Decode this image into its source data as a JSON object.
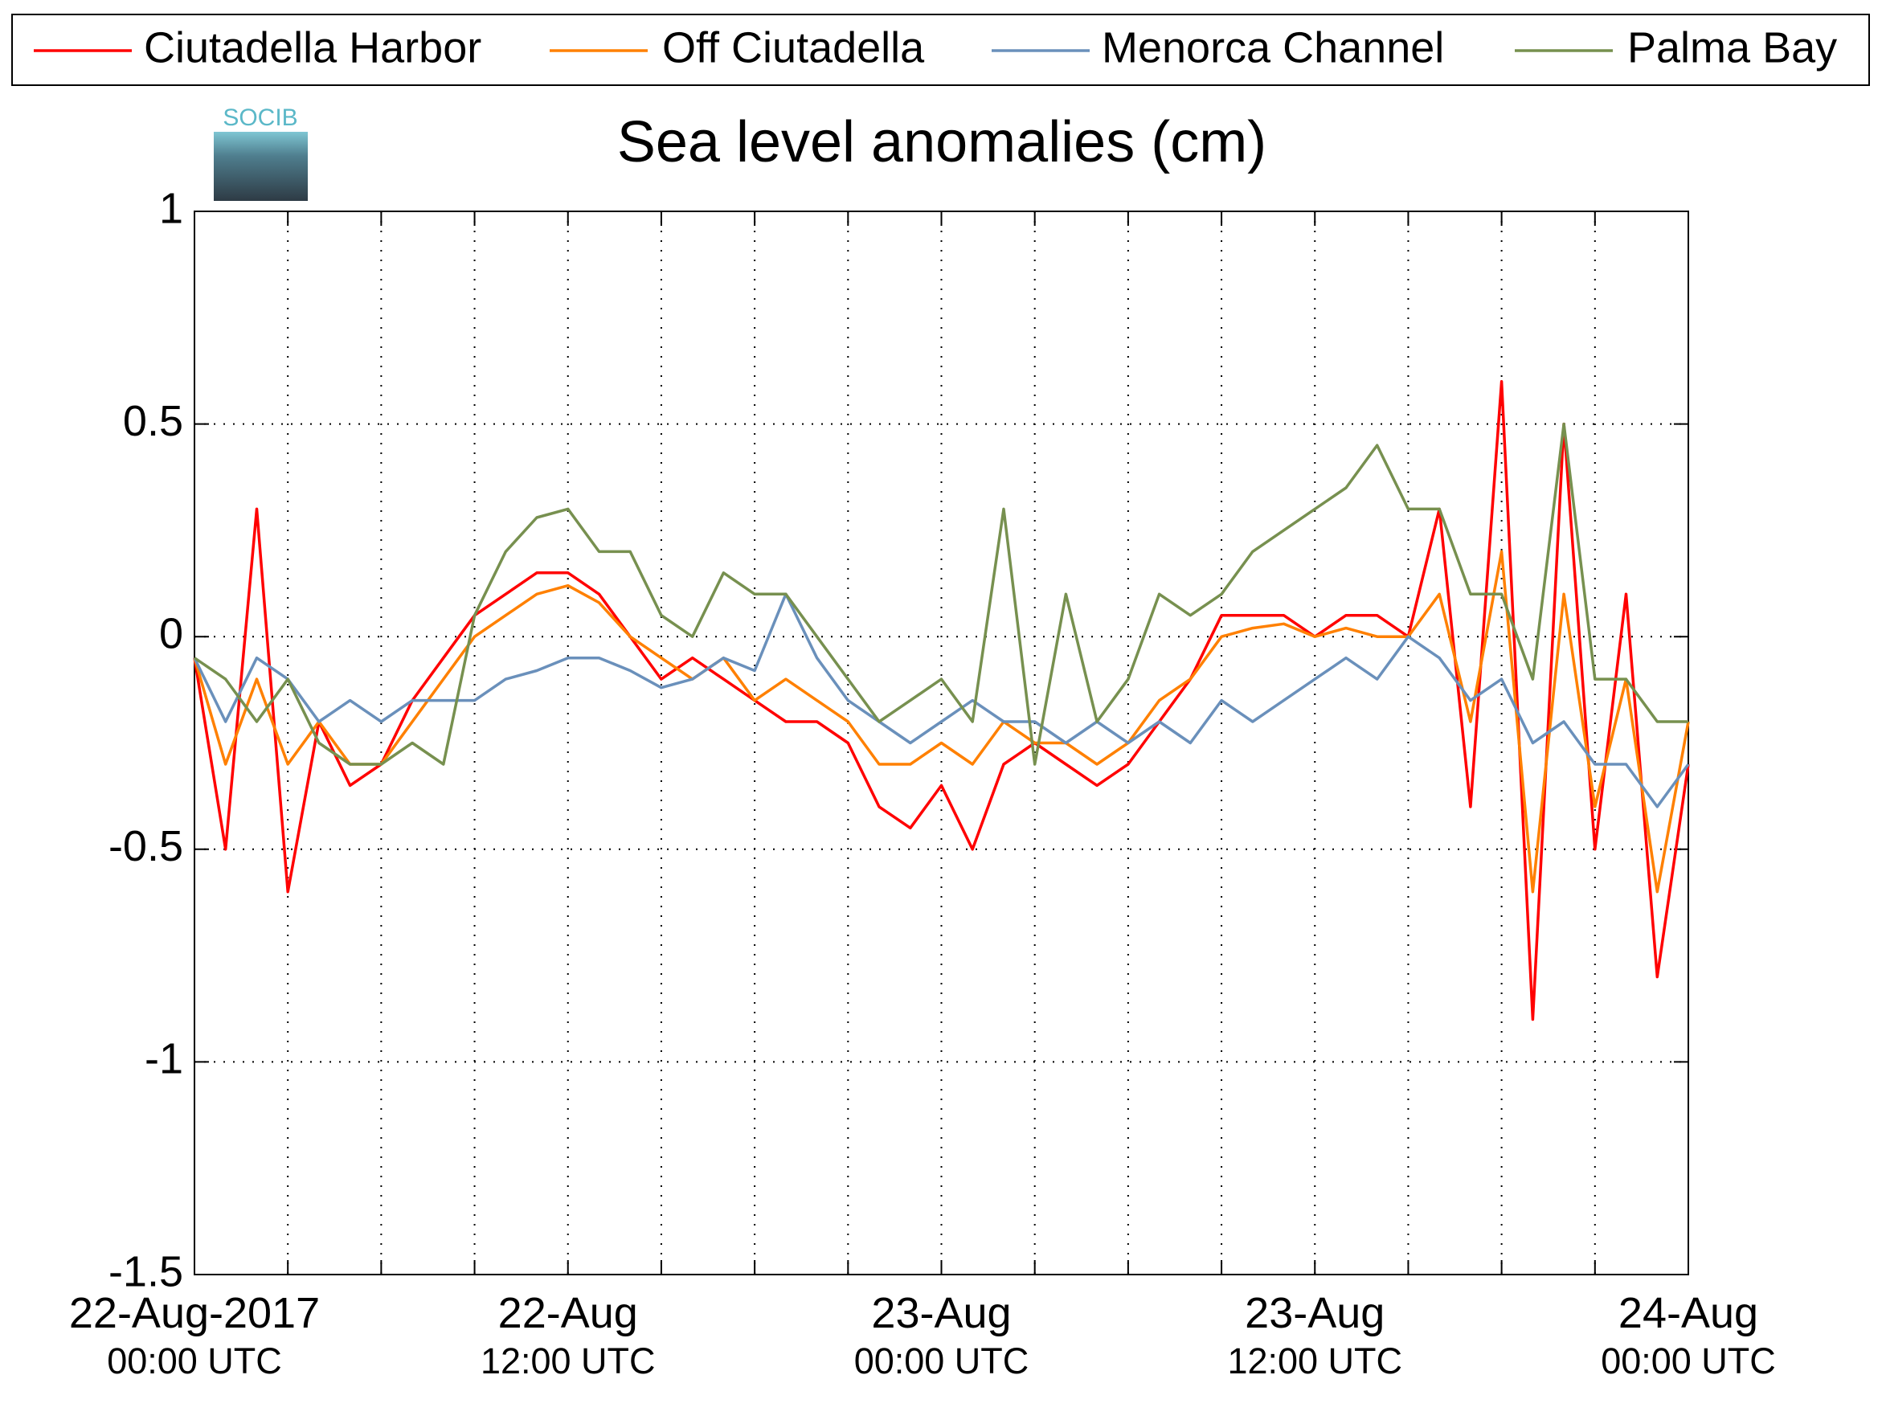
{
  "chart_data": {
    "type": "line",
    "title": "Sea level anomalies (cm)",
    "logo": "SOCIB",
    "x": [
      0,
      1,
      2,
      3,
      4,
      5,
      6,
      7,
      8,
      9,
      10,
      11,
      12,
      13,
      14,
      15,
      16,
      17,
      18,
      19,
      20,
      21,
      22,
      23,
      24,
      25,
      26,
      27,
      28,
      29,
      30,
      31,
      32,
      33,
      34,
      35,
      36,
      37,
      38,
      39,
      40,
      41,
      42,
      43,
      44,
      45,
      46,
      47,
      48
    ],
    "xlim": [
      0,
      48
    ],
    "xticks": [
      {
        "value": 0,
        "label": "22-Aug-2017\n00:00 UTC"
      },
      {
        "value": 12,
        "label": "22-Aug\n12:00 UTC"
      },
      {
        "value": 24,
        "label": "23-Aug\n00:00 UTC"
      },
      {
        "value": 36,
        "label": "23-Aug\n12:00 UTC"
      },
      {
        "value": 48,
        "label": "24-Aug\n00:00 UTC"
      }
    ],
    "xminor": [
      3,
      6,
      9,
      15,
      18,
      21,
      27,
      30,
      33,
      39,
      42,
      45
    ],
    "ylim": [
      -1.5,
      1
    ],
    "yticks": [
      -1.5,
      -1,
      -0.5,
      0,
      0.5,
      1
    ],
    "grid": true,
    "legend": "top",
    "series": [
      {
        "name": "Ciutadella Harbor",
        "color": "#ff0000",
        "values": [
          -0.05,
          -0.5,
          0.3,
          -0.6,
          -0.2,
          -0.35,
          -0.3,
          -0.15,
          -0.05,
          0.05,
          0.1,
          0.15,
          0.15,
          0.1,
          0,
          -0.1,
          -0.05,
          -0.1,
          -0.15,
          -0.2,
          -0.2,
          -0.25,
          -0.4,
          -0.45,
          -0.35,
          -0.5,
          -0.3,
          -0.25,
          -0.3,
          -0.35,
          -0.3,
          -0.2,
          -0.1,
          0.05,
          0.05,
          0.05,
          0,
          0.05,
          0.05,
          0,
          0.3,
          -0.4,
          0.6,
          -0.9,
          0.5,
          -0.5,
          0.1,
          -0.8,
          -0.3
        ]
      },
      {
        "name": "Off Ciutadella",
        "color": "#ff8000",
        "values": [
          -0.05,
          -0.3,
          -0.1,
          -0.3,
          -0.2,
          -0.3,
          -0.3,
          -0.2,
          -0.1,
          0,
          0.05,
          0.1,
          0.12,
          0.08,
          0,
          -0.05,
          -0.1,
          -0.05,
          -0.15,
          -0.1,
          -0.15,
          -0.2,
          -0.3,
          -0.3,
          -0.25,
          -0.3,
          -0.2,
          -0.25,
          -0.25,
          -0.3,
          -0.25,
          -0.15,
          -0.1,
          0,
          0.02,
          0.03,
          0,
          0.02,
          0,
          0,
          0.1,
          -0.2,
          0.2,
          -0.6,
          0.1,
          -0.4,
          -0.1,
          -0.6,
          -0.2
        ]
      },
      {
        "name": "Menorca Channel",
        "color": "#6a90bb",
        "values": [
          -0.05,
          -0.2,
          -0.05,
          -0.1,
          -0.2,
          -0.15,
          -0.2,
          -0.15,
          -0.15,
          -0.15,
          -0.1,
          -0.08,
          -0.05,
          -0.05,
          -0.08,
          -0.12,
          -0.1,
          -0.05,
          -0.08,
          0.1,
          -0.05,
          -0.15,
          -0.2,
          -0.25,
          -0.2,
          -0.15,
          -0.2,
          -0.2,
          -0.25,
          -0.2,
          -0.25,
          -0.2,
          -0.25,
          -0.15,
          -0.2,
          -0.15,
          -0.1,
          -0.05,
          -0.1,
          0,
          -0.05,
          -0.15,
          -0.1,
          -0.25,
          -0.2,
          -0.3,
          -0.3,
          -0.4,
          -0.3
        ]
      },
      {
        "name": "Palma Bay",
        "color": "#77904f",
        "values": [
          -0.05,
          -0.1,
          -0.2,
          -0.1,
          -0.25,
          -0.3,
          -0.3,
          -0.25,
          -0.3,
          0.05,
          0.2,
          0.28,
          0.3,
          0.2,
          0.2,
          0.05,
          0,
          0.15,
          0.1,
          0.1,
          0,
          -0.1,
          -0.2,
          -0.15,
          -0.1,
          -0.2,
          0.3,
          -0.3,
          0.1,
          -0.2,
          -0.1,
          0.1,
          0.05,
          0.1,
          0.2,
          0.25,
          0.3,
          0.35,
          0.45,
          0.3,
          0.3,
          0.1,
          0.1,
          -0.1,
          0.5,
          -0.1,
          -0.1,
          -0.2,
          -0.2
        ]
      }
    ]
  }
}
